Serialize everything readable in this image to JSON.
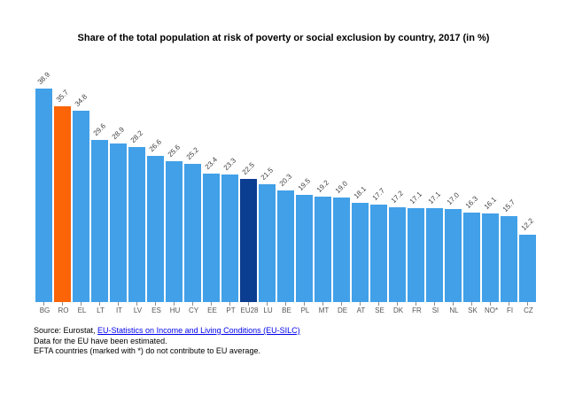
{
  "chart_data": {
    "type": "bar",
    "title": "Share of the total population at risk of poverty or social exclusion by country, 2017 (in %)",
    "categories": [
      "BG",
      "RO",
      "EL",
      "LT",
      "IT",
      "LV",
      "ES",
      "HU",
      "CY",
      "EE",
      "PT",
      "EU28",
      "LU",
      "BE",
      "PL",
      "MT",
      "DE",
      "AT",
      "SE",
      "DK",
      "FR",
      "SI",
      "NL",
      "SK",
      "NO*",
      "FI",
      "CZ"
    ],
    "values": [
      38.9,
      35.7,
      34.8,
      29.6,
      28.9,
      28.2,
      26.6,
      25.6,
      25.2,
      23.4,
      23.3,
      22.5,
      21.5,
      20.3,
      19.5,
      19.2,
      19.0,
      18.1,
      17.7,
      17.2,
      17.1,
      17.1,
      17.0,
      16.3,
      16.1,
      15.7,
      12.2
    ],
    "bar_colors": [
      "blue",
      "orange",
      "blue",
      "blue",
      "blue",
      "blue",
      "blue",
      "blue",
      "blue",
      "blue",
      "blue",
      "darkblue",
      "blue",
      "blue",
      "blue",
      "blue",
      "blue",
      "blue",
      "blue",
      "blue",
      "blue",
      "blue",
      "blue",
      "blue",
      "blue",
      "blue",
      "blue"
    ],
    "colors": {
      "blue": "#41a0e8",
      "orange": "#fb6407",
      "darkblue": "#0b3d91"
    },
    "xlabel": "",
    "ylabel": "",
    "ylim": [
      0,
      40
    ],
    "grid": false,
    "legend": "none",
    "value_labels": "one-decimal, rotated 45deg above each bar",
    "highlighted_bars": {
      "RO": "orange",
      "EU28": "darkblue"
    }
  },
  "footer": {
    "source_prefix": "Source: Eurostat, ",
    "source_link": "EU-Statistics on Income and Living Conditions (EU-SILC)",
    "note_estimated": "Data for the EU have been estimated.",
    "note_efta": "EFTA countries (marked with *) do not contribute to EU average."
  }
}
